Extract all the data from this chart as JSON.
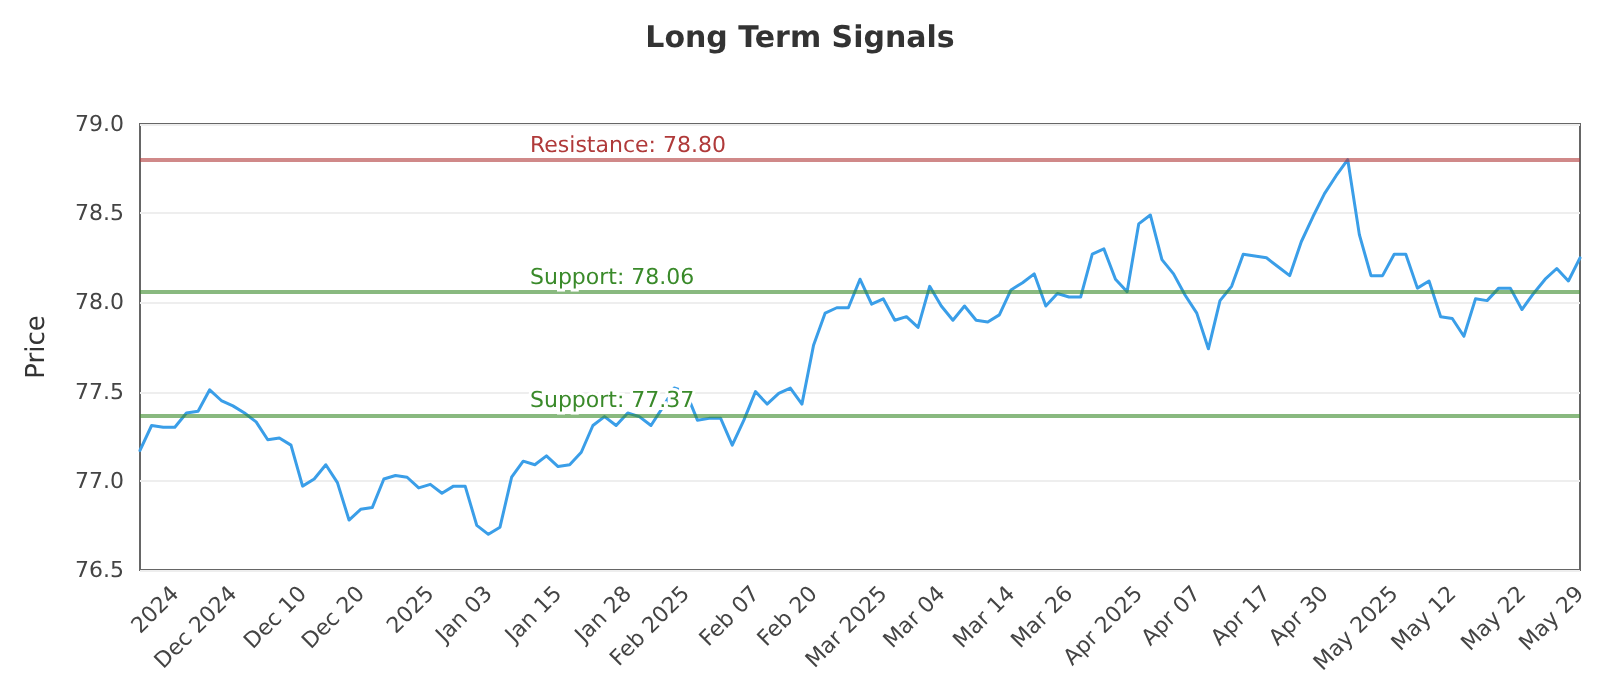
{
  "chart_data": {
    "type": "line",
    "title": "Long Term Signals",
    "ylabel": "Price",
    "categories": [
      null,
      null,
      null,
      "2024",
      null,
      null,
      null,
      null,
      "Dec 2024",
      null,
      null,
      null,
      null,
      null,
      "Dec 10",
      null,
      null,
      null,
      null,
      "Dec 20",
      null,
      null,
      null,
      null,
      null,
      "2025",
      null,
      null,
      null,
      null,
      "Jan 03",
      null,
      null,
      null,
      null,
      null,
      "Jan 15",
      null,
      null,
      null,
      null,
      null,
      "Jan 28",
      null,
      null,
      null,
      null,
      "Feb 2025",
      null,
      null,
      null,
      null,
      null,
      "Feb 07",
      null,
      null,
      null,
      null,
      "Feb 20",
      null,
      null,
      null,
      null,
      null,
      "Mar 2025",
      null,
      null,
      null,
      null,
      "Mar 04",
      null,
      null,
      null,
      null,
      null,
      "Mar 14",
      null,
      null,
      null,
      null,
      "Mar 26",
      null,
      null,
      null,
      null,
      null,
      "Apr 2025",
      null,
      null,
      null,
      null,
      "Apr 07",
      null,
      null,
      null,
      null,
      null,
      "Apr 17",
      null,
      null,
      null,
      null,
      "Apr 30",
      null,
      null,
      null,
      null,
      null,
      "May 2025",
      null,
      null,
      null,
      null,
      "May 12",
      null,
      null,
      null,
      null,
      null,
      "May 22",
      null,
      null,
      null,
      null,
      "May 29"
    ],
    "series": [
      {
        "color": "#3a9ee8",
        "values": [
          77.17,
          77.31,
          77.3,
          77.3,
          77.38,
          77.39,
          77.51,
          77.45,
          77.42,
          77.38,
          77.33,
          77.23,
          77.24,
          77.2,
          76.97,
          77.01,
          77.09,
          76.99,
          76.78,
          76.84,
          76.85,
          77.01,
          77.03,
          77.02,
          76.96,
          76.98,
          76.93,
          76.97,
          76.97,
          76.75,
          76.7,
          76.74,
          77.02,
          77.11,
          77.09,
          77.14,
          77.08,
          77.09,
          77.16,
          77.31,
          77.36,
          77.31,
          77.38,
          77.36,
          77.31,
          77.41,
          77.52,
          77.5,
          77.34,
          77.35,
          77.35,
          77.2,
          77.34,
          77.5,
          77.43,
          77.49,
          77.52,
          77.43,
          77.76,
          77.94,
          77.97,
          77.97,
          78.13,
          77.99,
          78.02,
          77.9,
          77.92,
          77.86,
          78.09,
          77.98,
          77.9,
          77.98,
          77.9,
          77.89,
          77.93,
          78.07,
          78.11,
          78.16,
          77.98,
          78.05,
          78.03,
          78.03,
          78.27,
          78.3,
          78.13,
          78.06,
          78.44,
          78.49,
          78.24,
          78.16,
          78.04,
          77.94,
          77.74,
          78.01,
          78.09,
          78.27,
          78.26,
          78.25,
          78.2,
          78.15,
          78.34,
          78.48,
          78.61,
          78.71,
          78.8,
          78.38,
          78.15,
          78.15,
          78.27,
          78.27,
          78.08,
          78.12,
          77.92,
          77.91,
          77.81,
          78.02,
          78.01,
          78.08,
          78.08,
          77.96,
          78.05,
          78.13,
          78.19,
          78.12,
          78.25
        ]
      }
    ],
    "ylim": [
      76.5,
      79.0
    ],
    "yticks": [
      76.5,
      {
        "value": 77,
        "label": "77.0"
      },
      77.5,
      {
        "value": 78,
        "label": "78.0"
      },
      78.5,
      {
        "value": 79,
        "label": "79.0"
      }
    ],
    "ref_lines": [
      {
        "axis": "y",
        "value": 78.8,
        "label": "Resistance: 78.80",
        "color": "#b03a3a"
      },
      {
        "axis": "y",
        "value": 78.06,
        "label": "Support: 78.06",
        "color": "#3a8a2a"
      },
      {
        "axis": "y",
        "value": 77.37,
        "label": "Support: 77.37",
        "color": "#3a8a2a"
      }
    ],
    "grid": "y",
    "marker": "none",
    "line_style": "solid"
  }
}
